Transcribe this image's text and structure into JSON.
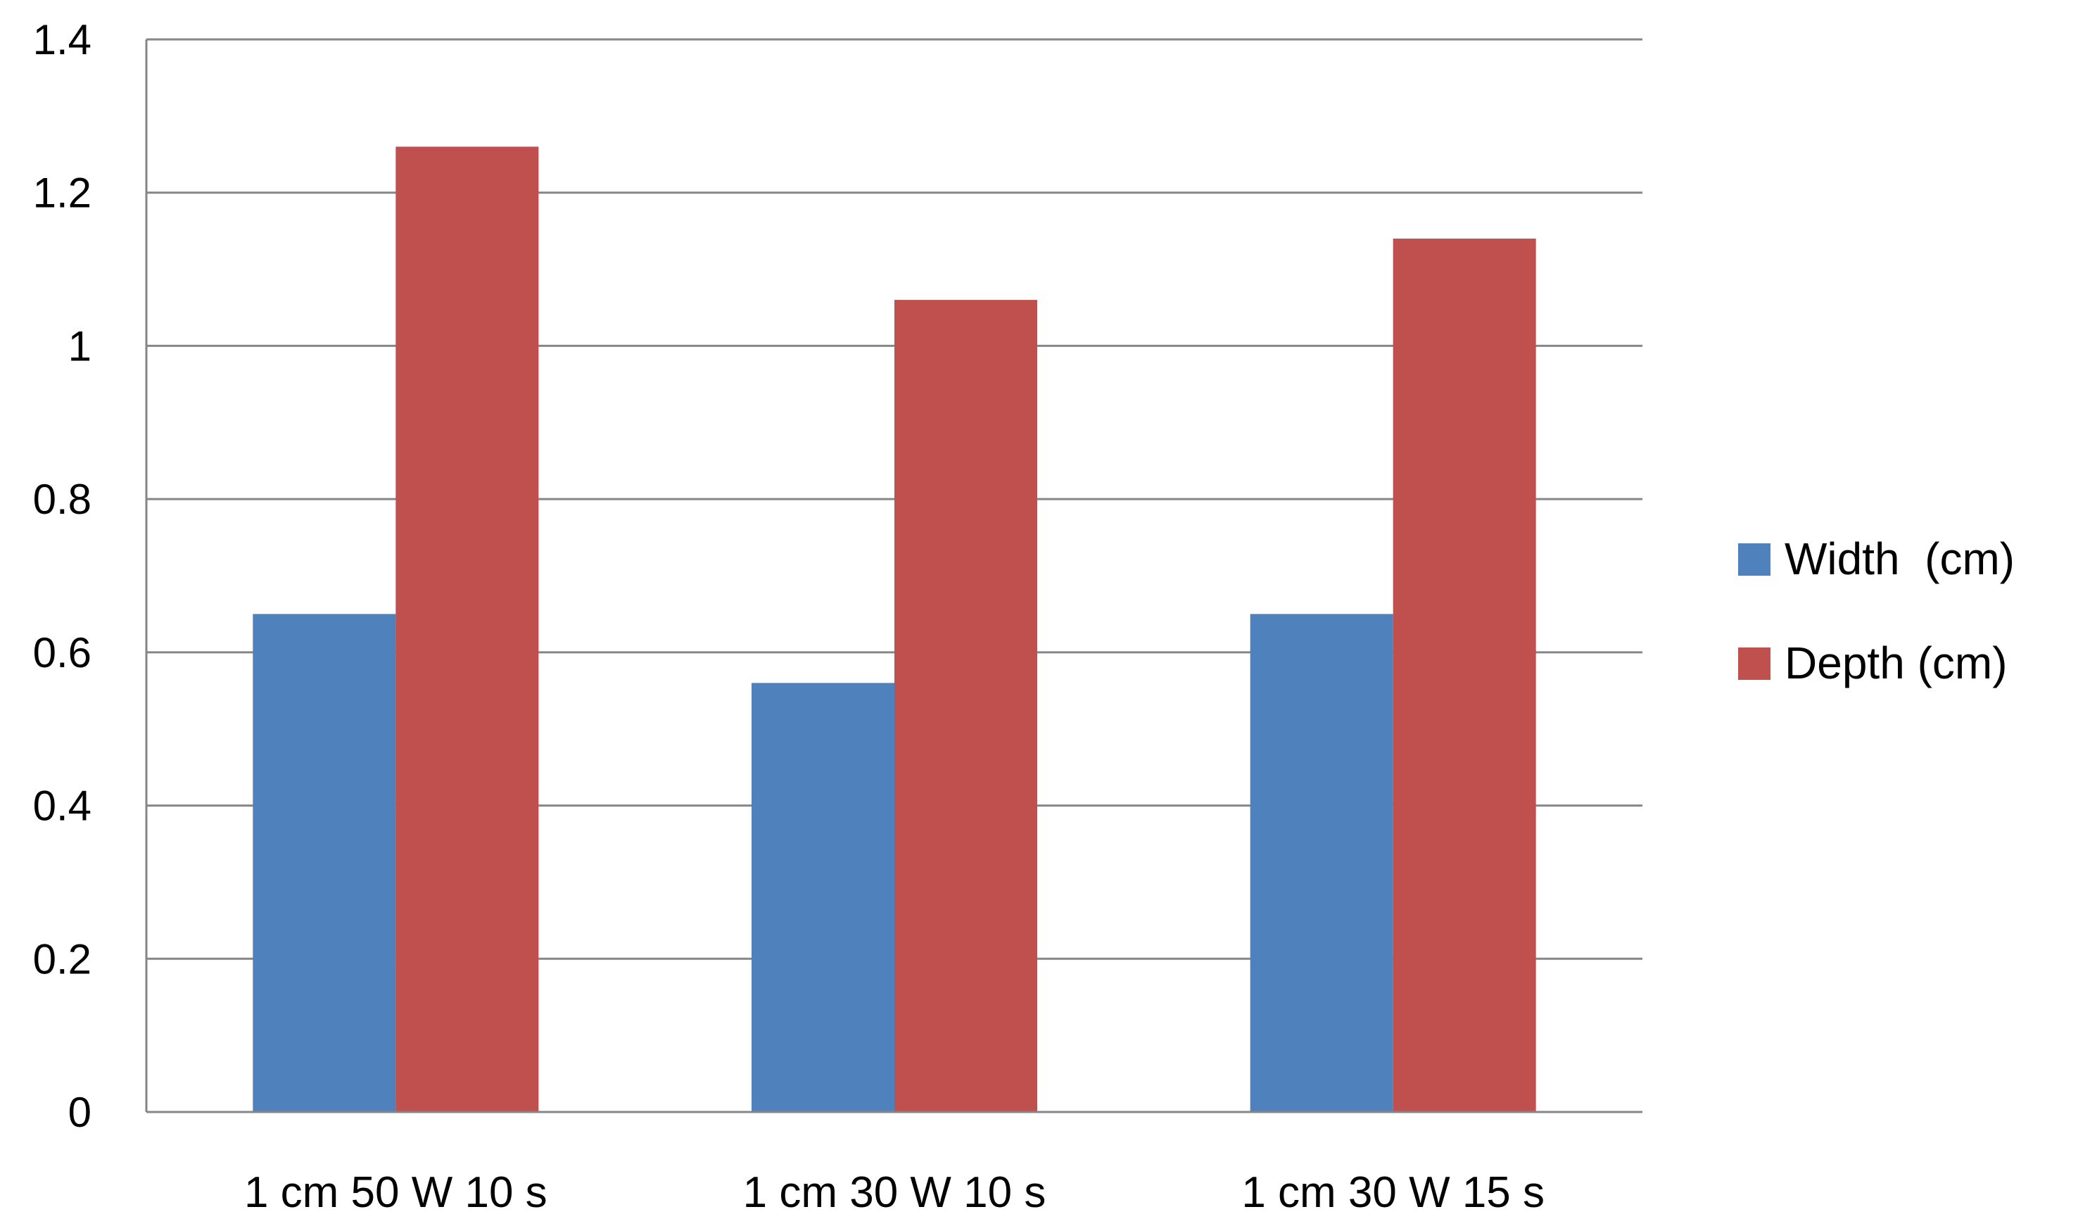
{
  "chart_data": {
    "type": "bar",
    "categories": [
      "1 cm 50 W 10 s",
      "1 cm 30 W 10 s",
      "1 cm 30 W 15 s"
    ],
    "series": [
      {
        "name": "Width  (cm)",
        "color": "#4F81BD",
        "values": [
          0.65,
          0.56,
          0.65
        ]
      },
      {
        "name": "Depth (cm)",
        "color": "#C0504D",
        "values": [
          1.26,
          1.06,
          1.14
        ]
      }
    ],
    "ylim": [
      0,
      1.4
    ],
    "yticks": [
      "0",
      "0.2",
      "0.4",
      "0.6",
      "0.8",
      "1",
      "1.2",
      "1.4"
    ],
    "grid": true,
    "legend": "right"
  }
}
